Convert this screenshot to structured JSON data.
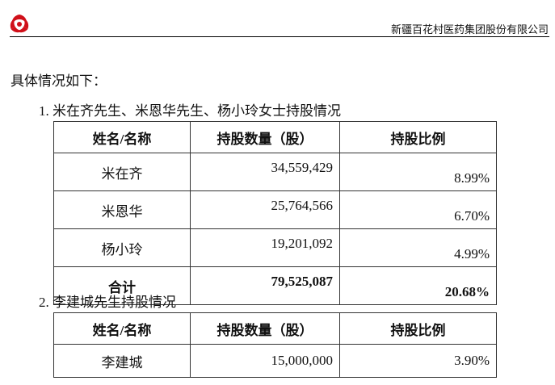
{
  "header": {
    "company": "新疆百花村医药集团股份有限公司",
    "logo": "company-logo",
    "brand_color": "#d0101a"
  },
  "intro": "具体情况如下：",
  "section1": {
    "title": "1. 米在齐先生、米恩华先生、杨小玲女士持股情况",
    "columns": [
      "姓名/名称",
      "持股数量（股）",
      "持股比例"
    ],
    "rows": [
      {
        "name": "米在齐",
        "shares": "34,559,429",
        "ratio": "8.99%"
      },
      {
        "name": "米恩华",
        "shares": "25,764,566",
        "ratio": "6.70%"
      },
      {
        "name": "杨小玲",
        "shares": "19,201,092",
        "ratio": "4.99%"
      }
    ],
    "total": {
      "name": "合计",
      "shares": "79,525,087",
      "ratio": "20.68%"
    }
  },
  "section2": {
    "title": "2. 李建城先生持股情况",
    "columns": [
      "姓名/名称",
      "持股数量（股）",
      "持股比例"
    ],
    "rows": [
      {
        "name": "李建城",
        "shares": "15,000,000",
        "ratio": "3.90%"
      }
    ]
  }
}
